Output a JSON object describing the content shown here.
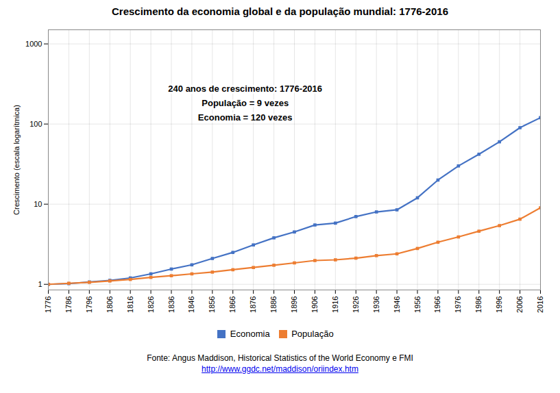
{
  "chart_data": {
    "type": "line",
    "title": "Crescimento da economia global e da população mundial: 1776-2016",
    "ylabel": "Crescimento (escala logarítmica)",
    "annotations": [
      "240 anos de crescimento: 1776-2016",
      "População = 9 vezes",
      "Economia = 120 vezes"
    ],
    "footer_lines": [
      "Fonte: Angus Maddison, Historical Statistics of the World Economy e FMI",
      "http://www.ggdc.net/maddison/oriindex.htm"
    ],
    "x": [
      1776,
      1786,
      1796,
      1806,
      1816,
      1826,
      1836,
      1846,
      1856,
      1866,
      1876,
      1886,
      1896,
      1906,
      1916,
      1926,
      1936,
      1946,
      1956,
      1966,
      1976,
      1986,
      1996,
      2006,
      2016
    ],
    "series": [
      {
        "name": "Economia",
        "color": "#4472C4",
        "marker": "square",
        "values": [
          1.0,
          1.02,
          1.07,
          1.12,
          1.2,
          1.35,
          1.55,
          1.75,
          2.1,
          2.5,
          3.1,
          3.8,
          4.5,
          5.5,
          5.8,
          7.0,
          8.0,
          8.5,
          12.0,
          20.0,
          30.0,
          42.0,
          60.0,
          90.0,
          120.0
        ]
      },
      {
        "name": "População",
        "color": "#ED7D31",
        "marker": "square",
        "values": [
          1.0,
          1.03,
          1.06,
          1.1,
          1.15,
          1.22,
          1.28,
          1.35,
          1.42,
          1.52,
          1.62,
          1.73,
          1.85,
          1.98,
          2.02,
          2.12,
          2.28,
          2.4,
          2.8,
          3.35,
          3.9,
          4.6,
          5.4,
          6.5,
          9.0
        ]
      }
    ],
    "xlim": [
      1776,
      2016
    ],
    "xticks": [
      1776,
      1786,
      1796,
      1806,
      1816,
      1826,
      1836,
      1846,
      1856,
      1866,
      1876,
      1886,
      1896,
      1906,
      1916,
      1926,
      1936,
      1946,
      1956,
      1966,
      1976,
      1986,
      1996,
      2006,
      2016
    ],
    "ylim": [
      0.85,
      1500
    ],
    "yticks": [
      1,
      10,
      100,
      1000
    ],
    "log": "y",
    "grid": true,
    "legend": "bottom"
  }
}
